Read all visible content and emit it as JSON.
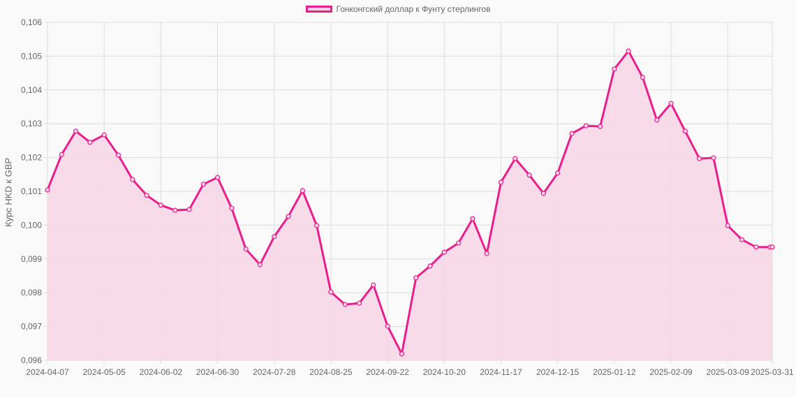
{
  "legend": {
    "label": "Гонконгский доллар к Фунту стерлингов"
  },
  "colors": {
    "line": "#e91e8c",
    "fill": "#f8d6e6",
    "grid": "#dddddd",
    "text": "#666666",
    "background": "#f9f9f9"
  },
  "chart_data": {
    "type": "area",
    "title": "",
    "legend": [
      "Гонконгский доллар к Фунту стерлингов"
    ],
    "legend_position": "top",
    "xlabel": "",
    "ylabel": "Курс HKD к GBP",
    "ylim": [
      0.096,
      0.106
    ],
    "y_ticks": [
      "0,096",
      "0,097",
      "0,098",
      "0,099",
      "0,100",
      "0,101",
      "0,102",
      "0,103",
      "0,104",
      "0,105",
      "0,106"
    ],
    "x_ticks": [
      "2024-04-07",
      "2024-05-05",
      "2024-06-02",
      "2024-06-30",
      "2024-07-28",
      "2024-08-25",
      "2024-09-22",
      "2024-10-20",
      "2024-11-17",
      "2024-12-15",
      "2025-01-12",
      "2025-02-09",
      "2025-03-09",
      "2025-03-31"
    ],
    "grid": true,
    "x": [
      "2024-04-07",
      "2024-04-14",
      "2024-04-21",
      "2024-04-28",
      "2024-05-05",
      "2024-05-12",
      "2024-05-19",
      "2024-05-26",
      "2024-06-02",
      "2024-06-09",
      "2024-06-16",
      "2024-06-23",
      "2024-06-30",
      "2024-07-07",
      "2024-07-14",
      "2024-07-21",
      "2024-07-28",
      "2024-08-04",
      "2024-08-11",
      "2024-08-18",
      "2024-08-25",
      "2024-09-01",
      "2024-09-08",
      "2024-09-15",
      "2024-09-22",
      "2024-09-29",
      "2024-10-06",
      "2024-10-13",
      "2024-10-20",
      "2024-10-27",
      "2024-11-03",
      "2024-11-10",
      "2024-11-17",
      "2024-11-24",
      "2024-12-01",
      "2024-12-08",
      "2024-12-15",
      "2024-12-22",
      "2024-12-29",
      "2025-01-05",
      "2025-01-12",
      "2025-01-19",
      "2025-01-26",
      "2025-02-02",
      "2025-02-09",
      "2025-02-16",
      "2025-02-23",
      "2025-03-02",
      "2025-03-09",
      "2025-03-16",
      "2025-03-23",
      "2025-03-30",
      "2025-03-31"
    ],
    "series": [
      {
        "name": "Гонконгский доллар к Фунту стерлингов",
        "values": [
          0.10104,
          0.10209,
          0.10278,
          0.10245,
          0.10267,
          0.10207,
          0.10135,
          0.10088,
          0.10059,
          0.10044,
          0.10046,
          0.10121,
          0.10141,
          0.1005,
          0.09929,
          0.09883,
          0.09966,
          0.10026,
          0.10102,
          0.09999,
          0.09802,
          0.09765,
          0.09769,
          0.09823,
          0.09701,
          0.09619,
          0.09844,
          0.09879,
          0.0992,
          0.09947,
          0.10019,
          0.09916,
          0.10127,
          0.10197,
          0.10148,
          0.10094,
          0.10154,
          0.10271,
          0.10294,
          0.10292,
          0.10462,
          0.10515,
          0.10437,
          0.10311,
          0.1036,
          0.10278,
          0.10197,
          0.10199,
          0.09999,
          0.09957,
          0.09935,
          0.09935,
          0.09935
        ]
      }
    ]
  }
}
